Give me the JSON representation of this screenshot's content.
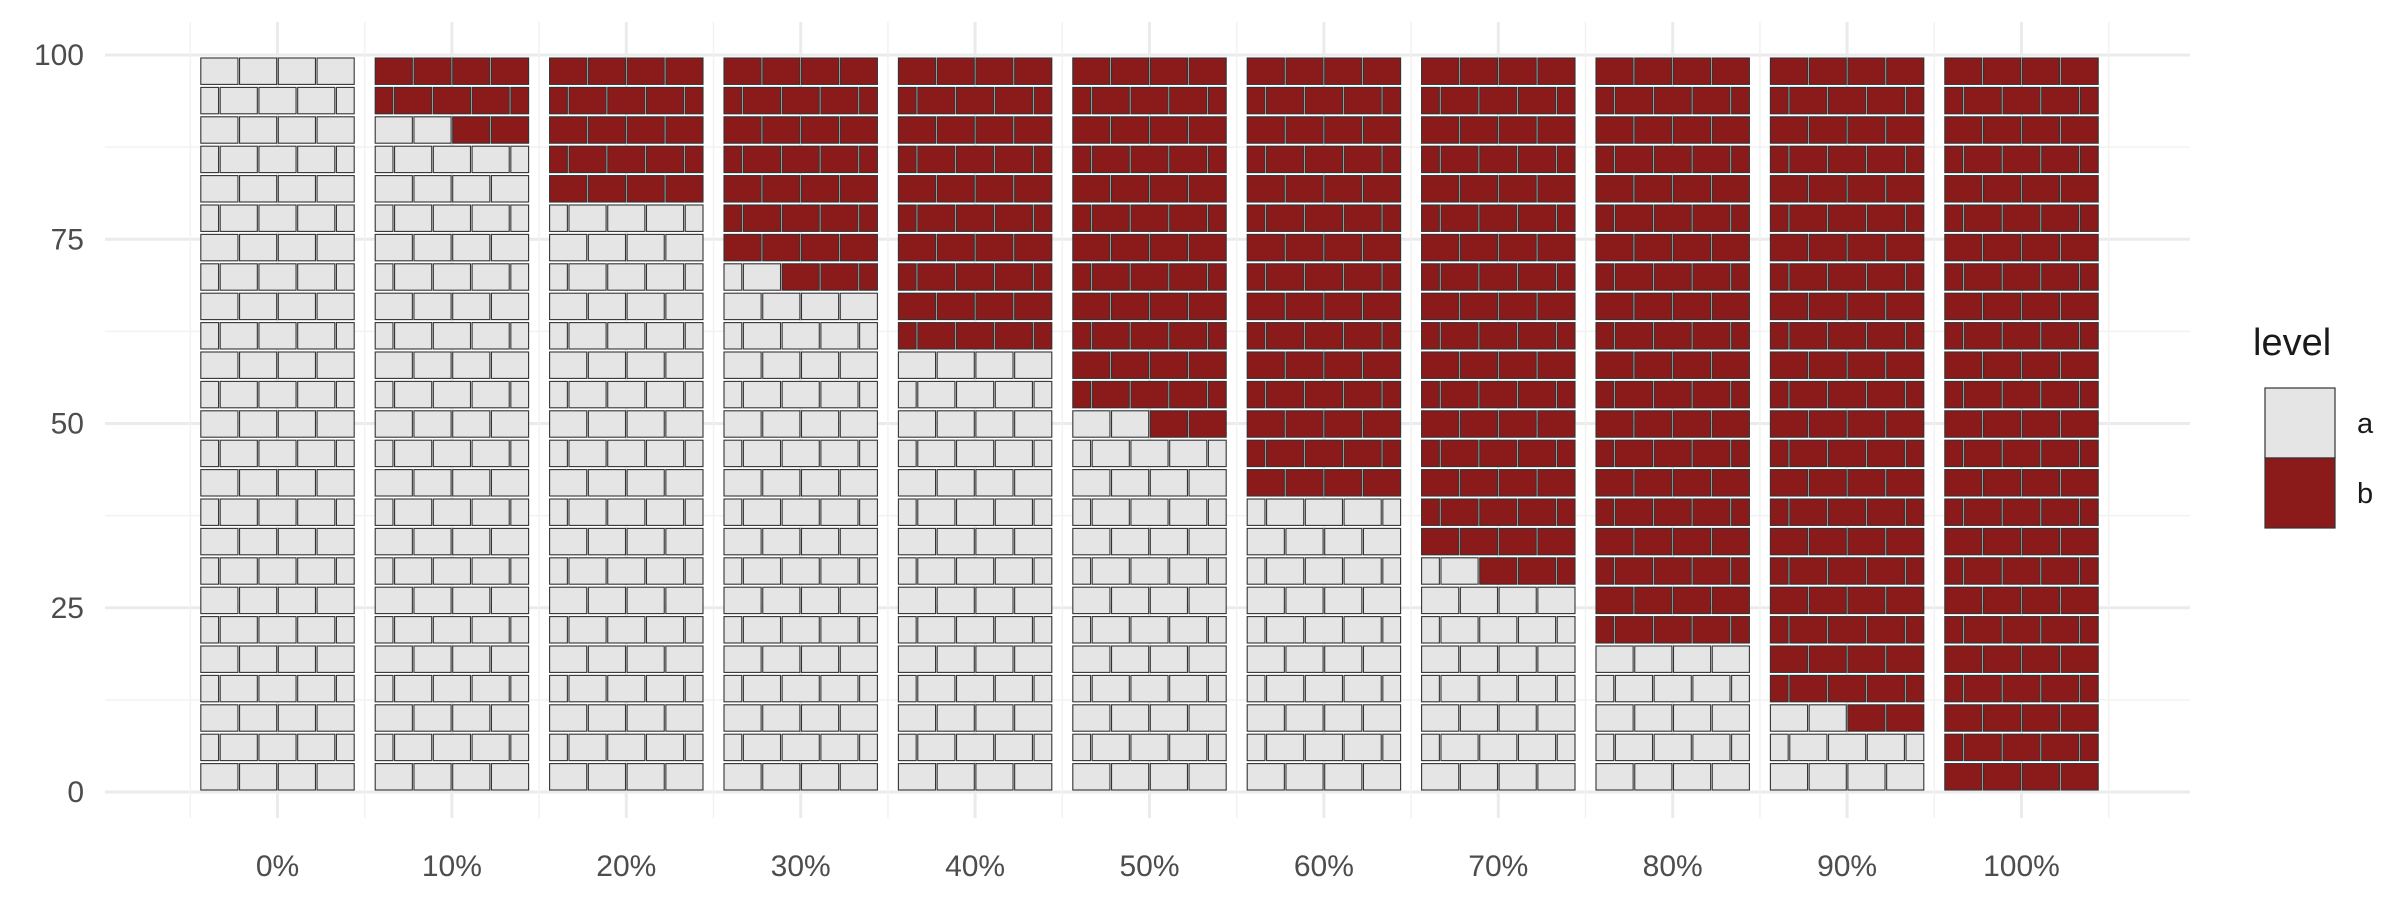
{
  "chart_data": {
    "type": "waffle",
    "categories": [
      "0%",
      "10%",
      "20%",
      "30%",
      "40%",
      "50%",
      "60%",
      "70%",
      "80%",
      "90%",
      "100%"
    ],
    "series": [
      {
        "name": "a",
        "color": "#e5e5e5",
        "values": [
          100,
          90,
          80,
          70,
          60,
          50,
          40,
          30,
          20,
          10,
          0
        ]
      },
      {
        "name": "b",
        "color": "#8b1a1a",
        "values": [
          0,
          10,
          20,
          30,
          40,
          50,
          60,
          70,
          80,
          90,
          100
        ]
      }
    ],
    "total_per_column": 100,
    "rows": 25,
    "bricks_per_row": 4,
    "y_ticks": [
      0,
      25,
      50,
      75,
      100
    ],
    "ylim": [
      0,
      100
    ],
    "grid": true,
    "legend": {
      "title": "level",
      "placement": "right",
      "entries": [
        "a",
        "b"
      ]
    },
    "title": "",
    "xlabel": "",
    "ylabel": ""
  }
}
